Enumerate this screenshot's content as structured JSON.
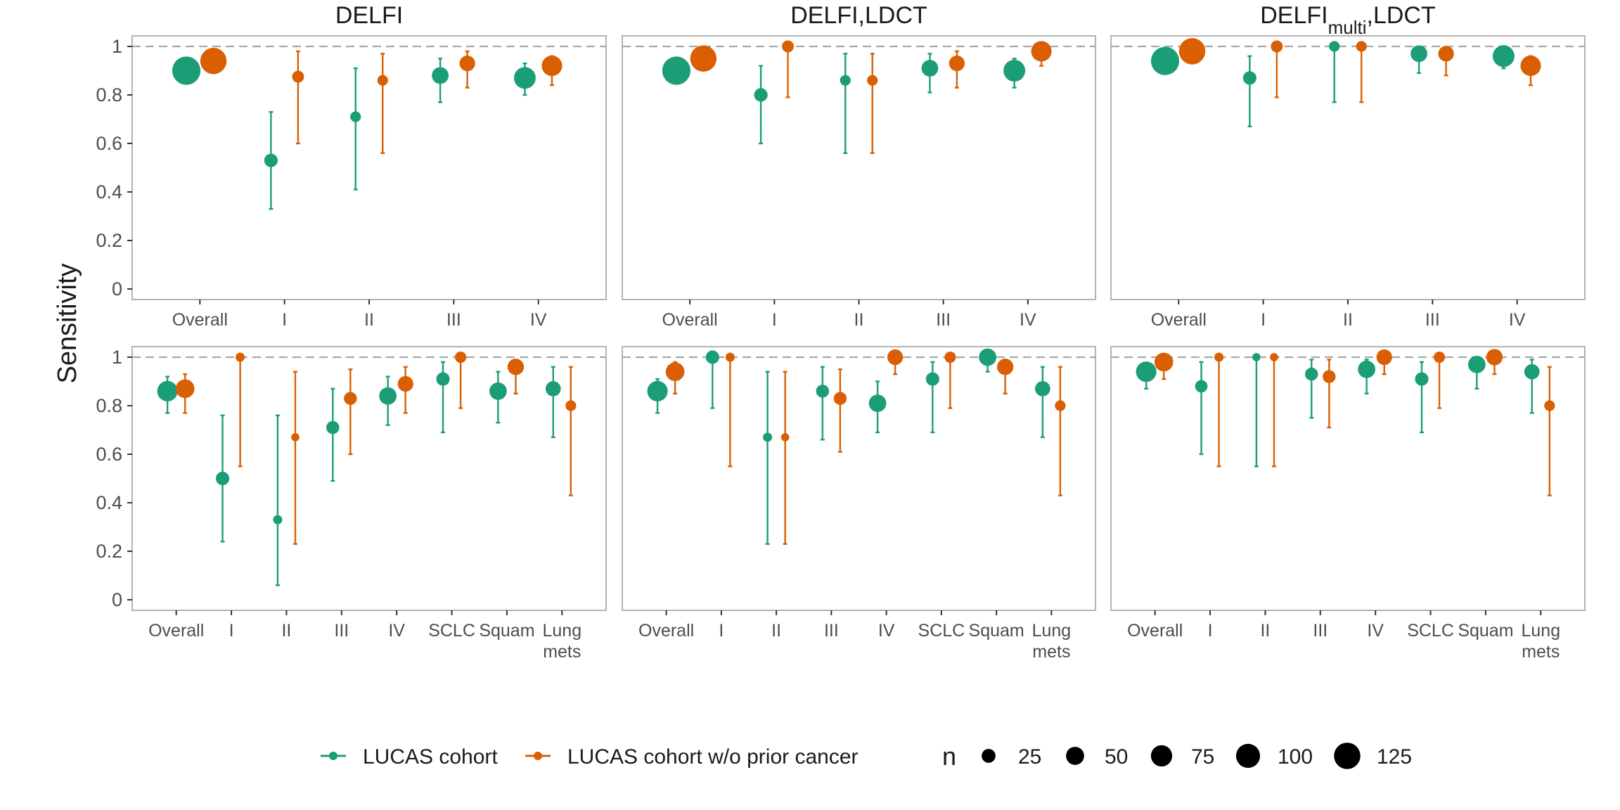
{
  "chart_data": {
    "type": "scatter",
    "ylabel": "Sensitivity",
    "ylim": [
      0,
      1
    ],
    "yticks": [
      "0",
      "0.2",
      "0.4",
      "0.6",
      "0.8",
      "1"
    ],
    "reference_line": 1,
    "colors": {
      "LUCAS cohort": "#1b9e77",
      "LUCAS cohort w/o prior cancer": "#d95f02"
    },
    "legend": {
      "series": [
        "LUCAS cohort",
        "LUCAS cohort w/o prior cancer"
      ],
      "size_title": "n",
      "sizes": [
        "25",
        "50",
        "75",
        "100",
        "125"
      ]
    },
    "panels": [
      {
        "title": "DELFI",
        "row": 0,
        "col": 0,
        "categories": [
          "Overall",
          "I",
          "II",
          "III",
          "IV"
        ],
        "series": [
          {
            "name": "LUCAS cohort",
            "estimates": [
              0.9,
              0.53,
              0.71,
              0.88,
              0.87
            ],
            "lower": [
              0.86,
              0.33,
              0.41,
              0.77,
              0.8
            ],
            "upper": [
              0.94,
              0.73,
              0.91,
              0.95,
              0.93
            ],
            "n": [
              130,
              20,
              10,
              36,
              70
            ]
          },
          {
            "name": "LUCAS cohort w/o prior cancer",
            "estimates": [
              0.94,
              0.875,
              0.86,
              0.93,
              0.92
            ],
            "lower": [
              0.89,
              0.6,
              0.56,
              0.83,
              0.84
            ],
            "upper": [
              0.97,
              0.98,
              0.97,
              0.98,
              0.96
            ],
            "n": [
              110,
              14,
              10,
              30,
              60
            ]
          }
        ]
      },
      {
        "title": "DELFI,LDCT",
        "row": 0,
        "col": 1,
        "categories": [
          "Overall",
          "I",
          "II",
          "III",
          "IV"
        ],
        "series": [
          {
            "name": "LUCAS cohort",
            "estimates": [
              0.9,
              0.8,
              0.86,
              0.91,
              0.9
            ],
            "lower": [
              0.86,
              0.6,
              0.56,
              0.81,
              0.83
            ],
            "upper": [
              0.94,
              0.92,
              0.97,
              0.97,
              0.95
            ],
            "n": [
              130,
              20,
              10,
              36,
              70
            ]
          },
          {
            "name": "LUCAS cohort w/o prior cancer",
            "estimates": [
              0.95,
              1.0,
              0.86,
              0.93,
              0.98
            ],
            "lower": [
              0.91,
              0.79,
              0.56,
              0.83,
              0.92
            ],
            "upper": [
              0.98,
              1.0,
              0.97,
              0.98,
              1.0
            ],
            "n": [
              110,
              14,
              10,
              30,
              60
            ]
          }
        ]
      },
      {
        "title": "DELFImulti,LDCT",
        "title_main": "DELFI",
        "title_sub": "multi",
        "title_tail": ",LDCT",
        "row": 0,
        "col": 2,
        "categories": [
          "Overall",
          "I",
          "II",
          "III",
          "IV"
        ],
        "series": [
          {
            "name": "LUCAS cohort",
            "estimates": [
              0.94,
              0.87,
              1.0,
              0.97,
              0.96
            ],
            "lower": [
              0.9,
              0.67,
              0.77,
              0.89,
              0.91
            ],
            "upper": [
              0.97,
              0.96,
              1.0,
              0.99,
              0.99
            ],
            "n": [
              130,
              20,
              10,
              36,
              70
            ]
          },
          {
            "name": "LUCAS cohort w/o prior cancer",
            "estimates": [
              0.98,
              1.0,
              1.0,
              0.97,
              0.92
            ],
            "lower": [
              0.94,
              0.79,
              0.77,
              0.88,
              0.84
            ],
            "upper": [
              0.99,
              1.0,
              1.0,
              0.99,
              0.96
            ],
            "n": [
              110,
              14,
              10,
              30,
              60
            ]
          }
        ]
      },
      {
        "title": "",
        "row": 1,
        "col": 0,
        "categories": [
          "Overall",
          "I",
          "II",
          "III",
          "IV",
          "SCLC",
          "Squam",
          "Lung\nmets"
        ],
        "series": [
          {
            "name": "LUCAS cohort",
            "estimates": [
              0.86,
              0.5,
              0.33,
              0.71,
              0.84,
              0.91,
              0.86,
              0.87
            ],
            "lower": [
              0.77,
              0.24,
              0.06,
              0.49,
              0.72,
              0.69,
              0.73,
              0.67
            ],
            "upper": [
              0.92,
              0.76,
              0.76,
              0.87,
              0.92,
              0.98,
              0.94,
              0.96
            ],
            "n": [
              60,
              20,
              6,
              18,
              40,
              20,
              40,
              28
            ]
          },
          {
            "name": "LUCAS cohort w/o prior cancer",
            "estimates": [
              0.87,
              1.0,
              0.67,
              0.83,
              0.89,
              1.0,
              0.96,
              0.8
            ],
            "lower": [
              0.77,
              0.55,
              0.23,
              0.6,
              0.77,
              0.79,
              0.85,
              0.43
            ],
            "upper": [
              0.93,
              1.0,
              0.94,
              0.95,
              0.96,
              1.0,
              0.99,
              0.96
            ],
            "n": [
              48,
              6,
              4,
              18,
              30,
              12,
              34,
              10
            ]
          }
        ]
      },
      {
        "title": "",
        "row": 1,
        "col": 1,
        "categories": [
          "Overall",
          "I",
          "II",
          "III",
          "IV",
          "SCLC",
          "Squam",
          "Lung\nmets"
        ],
        "series": [
          {
            "name": "LUCAS cohort",
            "estimates": [
              0.86,
              1.0,
              0.67,
              0.86,
              0.81,
              0.91,
              1.0,
              0.87
            ],
            "lower": [
              0.77,
              0.79,
              0.23,
              0.66,
              0.69,
              0.69,
              0.94,
              0.67
            ],
            "upper": [
              0.91,
              1.0,
              0.94,
              0.96,
              0.9,
              0.98,
              1.0,
              0.96
            ],
            "n": [
              60,
              20,
              6,
              18,
              40,
              20,
              40,
              28
            ]
          },
          {
            "name": "LUCAS cohort w/o prior cancer",
            "estimates": [
              0.94,
              1.0,
              0.67,
              0.83,
              1.0,
              1.0,
              0.96,
              0.8
            ],
            "lower": [
              0.85,
              0.55,
              0.23,
              0.61,
              0.93,
              0.79,
              0.85,
              0.43
            ],
            "upper": [
              0.98,
              1.0,
              0.94,
              0.95,
              1.0,
              1.0,
              0.99,
              0.96
            ],
            "n": [
              48,
              6,
              4,
              18,
              30,
              12,
              34,
              10
            ]
          }
        ]
      },
      {
        "title": "",
        "row": 1,
        "col": 2,
        "categories": [
          "Overall",
          "I",
          "II",
          "III",
          "IV",
          "SCLC",
          "Squam",
          "Lung\nmets"
        ],
        "series": [
          {
            "name": "LUCAS cohort",
            "estimates": [
              0.94,
              0.88,
              1.0,
              0.93,
              0.95,
              0.91,
              0.97,
              0.94
            ],
            "lower": [
              0.87,
              0.6,
              0.55,
              0.75,
              0.85,
              0.69,
              0.87,
              0.77
            ],
            "upper": [
              0.97,
              0.98,
              1.0,
              0.99,
              0.99,
              0.98,
              0.99,
              0.99
            ],
            "n": [
              60,
              16,
              4,
              18,
              40,
              20,
              40,
              28
            ]
          },
          {
            "name": "LUCAS cohort w/o prior cancer",
            "estimates": [
              0.98,
              1.0,
              1.0,
              0.92,
              1.0,
              1.0,
              1.0,
              0.8
            ],
            "lower": [
              0.91,
              0.55,
              0.55,
              0.71,
              0.93,
              0.79,
              0.93,
              0.43
            ],
            "upper": [
              1.0,
              1.0,
              1.0,
              0.99,
              1.0,
              1.0,
              1.0,
              0.96
            ],
            "n": [
              48,
              6,
              4,
              18,
              30,
              12,
              34,
              10
            ]
          }
        ]
      }
    ]
  }
}
